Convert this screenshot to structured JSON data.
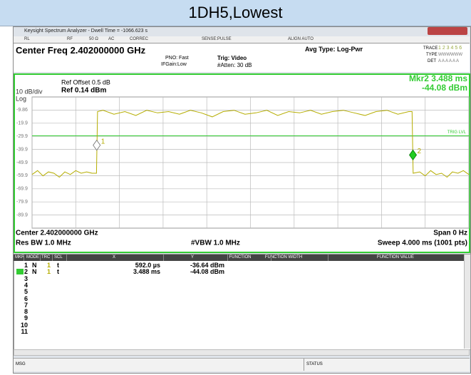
{
  "header": {
    "title": "1DH5,Lowest"
  },
  "window": {
    "title": "Keysight Spectrum Analyzer - Dwell Time = -1066.623 s"
  },
  "toolbar": [
    "RL",
    "RF",
    "50 Ω",
    "AC",
    "CORREC",
    "SENSE:PULSE",
    "ALIGN AUTO"
  ],
  "settings": {
    "center_freq": "Center Freq 2.402000000 GHz",
    "pno": "PNO: Fast",
    "ifgain": "IFGain:Low",
    "trig": "Trig: Video",
    "atten": "#Atten: 30 dB",
    "avg": "Avg Type: Log-Pwr",
    "trace_label": "TRACE",
    "trace_nums": "1 2 3 4 5 6",
    "type_label": "TYPE",
    "type_val": "WWWWWW",
    "det_label": "DET",
    "det_val": "A A A A A A"
  },
  "chart_data": {
    "type": "line",
    "ref_offset": "Ref Offset 0.5 dB",
    "ref": "Ref 0.14 dBm",
    "scale": "10 dB/div",
    "scale_type": "Log",
    "marker_readout": [
      "Mkr2 3.488 ms",
      "-44.08 dBm"
    ],
    "x": [
      0,
      0.05,
      0.1,
      0.15,
      0.2,
      0.25,
      0.3,
      0.35,
      0.4,
      0.45,
      0.5,
      0.55,
      0.59,
      0.6,
      0.65,
      0.75,
      0.85,
      0.95,
      1.05,
      1.15,
      1.25,
      1.35,
      1.45,
      1.55,
      1.65,
      1.75,
      1.85,
      1.95,
      2.05,
      2.15,
      2.25,
      2.35,
      2.45,
      2.55,
      2.65,
      2.75,
      2.85,
      2.95,
      3.05,
      3.15,
      3.25,
      3.35,
      3.45,
      3.48,
      3.49,
      3.55,
      3.6,
      3.65,
      3.7,
      3.75,
      3.8,
      3.85,
      3.9,
      3.95,
      4.0
    ],
    "series": [
      {
        "color": "#b5ad00",
        "values": [
          -59,
          -56,
          -60,
          -57,
          -58,
          -61,
          -57,
          -59,
          -56,
          -58,
          -57,
          -58,
          -58,
          -11,
          -10,
          -13,
          -11,
          -14,
          -10,
          -12,
          -11,
          -13,
          -10,
          -12,
          -15,
          -11,
          -10,
          -13,
          -12,
          -10,
          -14,
          -11,
          -12,
          -10,
          -13,
          -11,
          -10,
          -12,
          -14,
          -11,
          -10,
          -13,
          -11,
          -11,
          -58,
          -57,
          -60,
          -56,
          -59,
          -58,
          -61,
          -57,
          -58,
          -56,
          -59
        ]
      }
    ],
    "xlim": [
      0,
      4
    ],
    "xticks": [
      0,
      0.4,
      0.8,
      1.2,
      1.6,
      2,
      2.4,
      2.8,
      3.2,
      3.6,
      4
    ],
    "ylim": [
      -99.86,
      0.14
    ],
    "yticks": [
      -9.86,
      {
        "value": -19.86,
        "label": "-19.9"
      },
      {
        "value": -29.86,
        "label": "-29.9"
      },
      {
        "value": -39.86,
        "label": "-39.9"
      },
      {
        "value": -49.86,
        "label": "-49.9"
      },
      {
        "value": -59.86,
        "label": "-59.9"
      },
      {
        "value": -69.86,
        "label": "-69.9"
      },
      {
        "value": -79.86,
        "label": "-79.9"
      },
      {
        "value": -89.86,
        "label": "-89.9"
      }
    ],
    "grid": true,
    "trig_level": {
      "value": -29.5,
      "label": "TRIG LVL"
    },
    "markers": [
      {
        "label": "1",
        "x": 0.592,
        "y": -36.64
      },
      {
        "label": "2",
        "x": 3.488,
        "y": -44.08
      }
    ],
    "center": "Center 2.402000000 GHz",
    "span": "Span 0 Hz",
    "rbw": "Res BW 1.0 MHz",
    "vbw": "#VBW 1.0 MHz",
    "sweep": "Sweep 4.000 ms (1001 pts)"
  },
  "marker_table": {
    "columns": [
      "MKR",
      "MODE",
      "TRC",
      "SCL",
      "X",
      "Y",
      "FUNCTION",
      "FUNCTION WIDTH",
      "FUNCTION VALUE"
    ],
    "rows": [
      {
        "n": "1",
        "mode": "N",
        "trc": "1",
        "scl": "t",
        "x": "592.0 µs",
        "y": "-36.64 dBm"
      },
      {
        "n": "2",
        "mode": "N",
        "trc": "1",
        "scl": "t",
        "x": "3.488 ms",
        "y": "-44.08 dBm"
      },
      {
        "n": "3"
      },
      {
        "n": "4"
      },
      {
        "n": "5"
      },
      {
        "n": "6"
      },
      {
        "n": "7"
      },
      {
        "n": "8"
      },
      {
        "n": "9"
      },
      {
        "n": "10"
      },
      {
        "n": "11"
      }
    ]
  },
  "status": {
    "msg": "MSG",
    "status": "STATUS"
  }
}
